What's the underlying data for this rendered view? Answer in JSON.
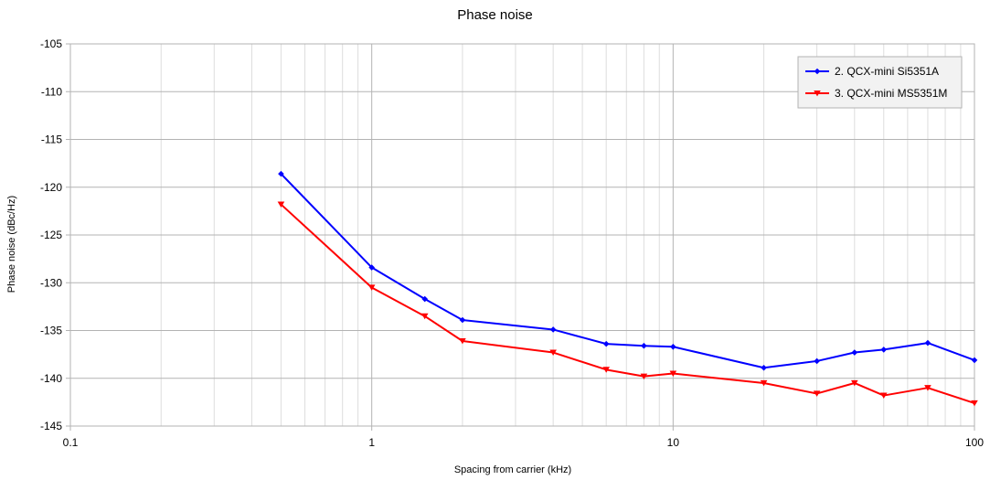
{
  "chart_data": {
    "type": "line",
    "title": "Phase noise",
    "xlabel": "Spacing from carrier (kHz)",
    "ylabel": "Phase noise (dBc/Hz)",
    "x_scale": "log",
    "xlim": [
      0.1,
      100
    ],
    "ylim": [
      -145,
      -105
    ],
    "x_ticks": [
      0.1,
      1,
      10,
      100
    ],
    "x_tick_labels": [
      "0.1",
      "1",
      "10",
      "100"
    ],
    "y_ticks": [
      -105,
      -110,
      -115,
      -120,
      -125,
      -130,
      -135,
      -140,
      -145
    ],
    "y_tick_labels": [
      "-105",
      "-110",
      "-115",
      "-120",
      "-125",
      "-130",
      "-135",
      "-140",
      "-145"
    ],
    "grid": true,
    "legend_position": "top-right",
    "x": [
      0.5,
      1,
      1.5,
      2,
      4,
      6,
      8,
      10,
      20,
      30,
      40,
      50,
      70,
      100
    ],
    "series": [
      {
        "name": "2. QCX-mini Si5351A",
        "color": "#0000ff",
        "marker": "diamond",
        "values": [
          -118.6,
          -128.4,
          -131.7,
          -133.9,
          -134.9,
          -136.4,
          -136.6,
          -136.7,
          -138.9,
          -138.2,
          -137.3,
          -137.0,
          -136.3,
          -138.1
        ]
      },
      {
        "name": "3. QCX-mini MS5351M",
        "color": "#ff0000",
        "marker": "triangle-down",
        "values": [
          -121.8,
          -130.5,
          -133.5,
          -136.1,
          -137.3,
          -139.1,
          -139.8,
          -139.5,
          -140.5,
          -141.6,
          -140.5,
          -141.8,
          -141.0,
          -142.6
        ]
      }
    ]
  }
}
